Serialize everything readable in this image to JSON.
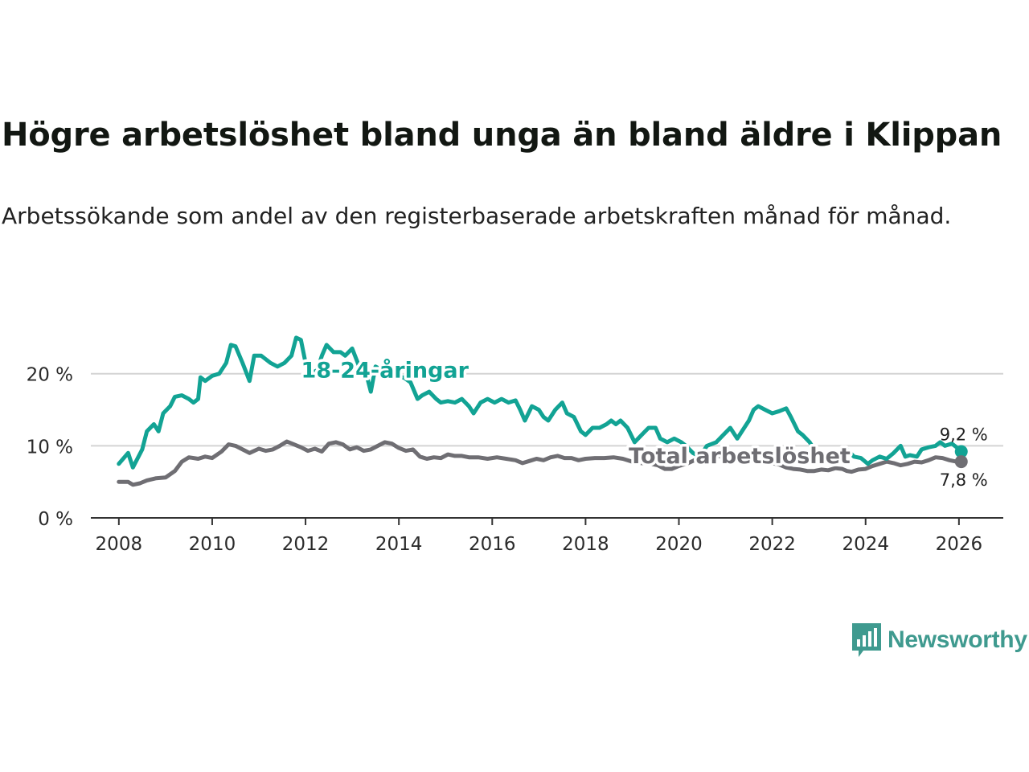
{
  "title": "Högre arbetslöshet bland unga än bland äldre i Klippan",
  "subtitle": "Arbetssökande som andel av den registerbaserade arbetskraften månad för månad.",
  "brand": {
    "name": "Newsworthy",
    "color": "#3f9a8f"
  },
  "colors": {
    "youth": "#12a394",
    "total": "#6f6e73",
    "grid": "#d4d4d4",
    "axis": "#333333"
  },
  "chart_data": {
    "type": "line",
    "title": "Högre arbetslöshet bland unga än bland äldre i Klippan",
    "xlabel": "",
    "ylabel": "",
    "xlim": [
      2007.4,
      2026.95
    ],
    "ylim": [
      0,
      27
    ],
    "y_ticks": [
      0,
      10,
      20
    ],
    "y_tick_labels": [
      "0 %",
      "10 %",
      "20 %"
    ],
    "x_ticks": [
      2008,
      2010,
      2012,
      2014,
      2016,
      2018,
      2020,
      2022,
      2024,
      2026
    ],
    "x_tick_labels": [
      "2008",
      "2010",
      "2012",
      "2014",
      "2016",
      "2018",
      "2020",
      "2022",
      "2024",
      "2026"
    ],
    "grid": true,
    "series": [
      {
        "name": "18-24-åringar",
        "color": "#12a394",
        "label_x": 2013.7,
        "label_y": 20.5,
        "end_label": "9,2 %",
        "end_value": 9.2,
        "points": [
          [
            2008.0,
            7.5
          ],
          [
            2008.2,
            9.0
          ],
          [
            2008.3,
            7.0
          ],
          [
            2008.5,
            9.5
          ],
          [
            2008.6,
            12.0
          ],
          [
            2008.75,
            13.0
          ],
          [
            2008.85,
            12.0
          ],
          [
            2008.95,
            14.5
          ],
          [
            2009.1,
            15.5
          ],
          [
            2009.2,
            16.8
          ],
          [
            2009.35,
            17.0
          ],
          [
            2009.5,
            16.5
          ],
          [
            2009.6,
            16.0
          ],
          [
            2009.7,
            16.5
          ],
          [
            2009.75,
            19.5
          ],
          [
            2009.85,
            19.0
          ],
          [
            2010.0,
            19.7
          ],
          [
            2010.15,
            20.0
          ],
          [
            2010.3,
            21.5
          ],
          [
            2010.4,
            24.0
          ],
          [
            2010.5,
            23.8
          ],
          [
            2010.65,
            21.5
          ],
          [
            2010.8,
            19.0
          ],
          [
            2010.9,
            22.5
          ],
          [
            2011.05,
            22.5
          ],
          [
            2011.25,
            21.5
          ],
          [
            2011.4,
            21.0
          ],
          [
            2011.55,
            21.5
          ],
          [
            2011.7,
            22.5
          ],
          [
            2011.8,
            25.0
          ],
          [
            2011.9,
            24.7
          ],
          [
            2012.0,
            21.5
          ],
          [
            2012.1,
            20.0
          ],
          [
            2012.25,
            20.5
          ],
          [
            2012.35,
            22.5
          ],
          [
            2012.45,
            24.0
          ],
          [
            2012.6,
            23.0
          ],
          [
            2012.75,
            23.0
          ],
          [
            2012.85,
            22.5
          ],
          [
            2013.0,
            23.5
          ],
          [
            2013.15,
            21.0
          ],
          [
            2013.3,
            20.0
          ],
          [
            2013.4,
            17.5
          ],
          [
            2013.5,
            21.0
          ],
          [
            2013.65,
            20.5
          ],
          [
            2013.8,
            19.8
          ],
          [
            2013.95,
            19.5
          ],
          [
            2014.1,
            19.5
          ],
          [
            2014.25,
            18.8
          ],
          [
            2014.4,
            16.5
          ],
          [
            2014.5,
            17.0
          ],
          [
            2014.65,
            17.5
          ],
          [
            2014.8,
            16.5
          ],
          [
            2014.9,
            16.0
          ],
          [
            2015.05,
            16.2
          ],
          [
            2015.2,
            16.0
          ],
          [
            2015.35,
            16.5
          ],
          [
            2015.5,
            15.5
          ],
          [
            2015.6,
            14.5
          ],
          [
            2015.75,
            16.0
          ],
          [
            2015.9,
            16.5
          ],
          [
            2016.05,
            16.0
          ],
          [
            2016.2,
            16.5
          ],
          [
            2016.35,
            16.0
          ],
          [
            2016.5,
            16.3
          ],
          [
            2016.6,
            15.0
          ],
          [
            2016.7,
            13.5
          ],
          [
            2016.85,
            15.5
          ],
          [
            2017.0,
            15.0
          ],
          [
            2017.1,
            14.0
          ],
          [
            2017.2,
            13.5
          ],
          [
            2017.35,
            15.0
          ],
          [
            2017.5,
            16.0
          ],
          [
            2017.6,
            14.5
          ],
          [
            2017.75,
            14.0
          ],
          [
            2017.9,
            12.0
          ],
          [
            2018.0,
            11.5
          ],
          [
            2018.15,
            12.5
          ],
          [
            2018.3,
            12.5
          ],
          [
            2018.45,
            13.0
          ],
          [
            2018.55,
            13.5
          ],
          [
            2018.65,
            13.0
          ],
          [
            2018.75,
            13.5
          ],
          [
            2018.9,
            12.5
          ],
          [
            2019.05,
            10.5
          ],
          [
            2019.2,
            11.5
          ],
          [
            2019.35,
            12.5
          ],
          [
            2019.5,
            12.5
          ],
          [
            2019.6,
            11.0
          ],
          [
            2019.75,
            10.5
          ],
          [
            2019.9,
            11.0
          ],
          [
            2020.05,
            10.5
          ],
          [
            2020.15,
            10.0
          ],
          [
            2020.3,
            9.0
          ],
          [
            2020.45,
            8.5
          ],
          [
            2020.6,
            10.0
          ],
          [
            2020.8,
            10.5
          ],
          [
            2020.95,
            11.5
          ],
          [
            2021.1,
            12.5
          ],
          [
            2021.25,
            11.0
          ],
          [
            2021.35,
            12.0
          ],
          [
            2021.5,
            13.5
          ],
          [
            2021.6,
            15.0
          ],
          [
            2021.7,
            15.5
          ],
          [
            2021.85,
            15.0
          ],
          [
            2022.0,
            14.5
          ],
          [
            2022.15,
            14.8
          ],
          [
            2022.3,
            15.2
          ],
          [
            2022.4,
            14.0
          ],
          [
            2022.55,
            12.0
          ],
          [
            2022.65,
            11.5
          ],
          [
            2022.8,
            10.5
          ],
          [
            2022.95,
            9.0
          ],
          [
            2023.1,
            8.0
          ],
          [
            2023.2,
            8.0
          ],
          [
            2023.3,
            7.5
          ],
          [
            2023.45,
            8.5
          ],
          [
            2023.6,
            9.5
          ],
          [
            2023.75,
            8.5
          ],
          [
            2023.9,
            8.3
          ],
          [
            2024.05,
            7.5
          ],
          [
            2024.15,
            8.0
          ],
          [
            2024.3,
            8.5
          ],
          [
            2024.45,
            8.2
          ],
          [
            2024.6,
            9.0
          ],
          [
            2024.75,
            10.0
          ],
          [
            2024.85,
            8.5
          ],
          [
            2024.95,
            8.7
          ],
          [
            2025.1,
            8.5
          ],
          [
            2025.2,
            9.5
          ],
          [
            2025.35,
            9.8
          ],
          [
            2025.5,
            10.0
          ],
          [
            2025.6,
            10.5
          ],
          [
            2025.7,
            10.0
          ],
          [
            2025.85,
            10.3
          ],
          [
            2025.95,
            9.8
          ],
          [
            2026.05,
            9.2
          ]
        ]
      },
      {
        "name": "Total arbetslöshet",
        "color": "#6f6e73",
        "label_x": 2021.3,
        "label_y": 8.6,
        "end_label": "7,8 %",
        "end_value": 7.8,
        "points": [
          [
            2008.0,
            5.0
          ],
          [
            2008.2,
            5.0
          ],
          [
            2008.3,
            4.6
          ],
          [
            2008.45,
            4.8
          ],
          [
            2008.6,
            5.2
          ],
          [
            2008.8,
            5.5
          ],
          [
            2009.0,
            5.6
          ],
          [
            2009.2,
            6.5
          ],
          [
            2009.35,
            7.8
          ],
          [
            2009.5,
            8.4
          ],
          [
            2009.7,
            8.2
          ],
          [
            2009.85,
            8.5
          ],
          [
            2010.0,
            8.3
          ],
          [
            2010.2,
            9.2
          ],
          [
            2010.35,
            10.2
          ],
          [
            2010.5,
            10.0
          ],
          [
            2010.65,
            9.5
          ],
          [
            2010.8,
            9.0
          ],
          [
            2011.0,
            9.6
          ],
          [
            2011.15,
            9.3
          ],
          [
            2011.3,
            9.5
          ],
          [
            2011.45,
            10.0
          ],
          [
            2011.6,
            10.6
          ],
          [
            2011.75,
            10.2
          ],
          [
            2011.9,
            9.8
          ],
          [
            2012.05,
            9.3
          ],
          [
            2012.2,
            9.6
          ],
          [
            2012.35,
            9.2
          ],
          [
            2012.5,
            10.3
          ],
          [
            2012.65,
            10.5
          ],
          [
            2012.8,
            10.2
          ],
          [
            2012.95,
            9.5
          ],
          [
            2013.1,
            9.8
          ],
          [
            2013.25,
            9.3
          ],
          [
            2013.4,
            9.5
          ],
          [
            2013.55,
            10.0
          ],
          [
            2013.7,
            10.5
          ],
          [
            2013.85,
            10.3
          ],
          [
            2014.0,
            9.7
          ],
          [
            2014.15,
            9.3
          ],
          [
            2014.3,
            9.5
          ],
          [
            2014.45,
            8.5
          ],
          [
            2014.6,
            8.2
          ],
          [
            2014.75,
            8.4
          ],
          [
            2014.9,
            8.3
          ],
          [
            2015.05,
            8.8
          ],
          [
            2015.2,
            8.6
          ],
          [
            2015.35,
            8.6
          ],
          [
            2015.5,
            8.4
          ],
          [
            2015.7,
            8.4
          ],
          [
            2015.9,
            8.2
          ],
          [
            2016.1,
            8.4
          ],
          [
            2016.3,
            8.2
          ],
          [
            2016.5,
            8.0
          ],
          [
            2016.65,
            7.6
          ],
          [
            2016.8,
            7.9
          ],
          [
            2016.95,
            8.2
          ],
          [
            2017.1,
            8.0
          ],
          [
            2017.25,
            8.4
          ],
          [
            2017.4,
            8.6
          ],
          [
            2017.55,
            8.3
          ],
          [
            2017.7,
            8.3
          ],
          [
            2017.85,
            8.0
          ],
          [
            2018.0,
            8.2
          ],
          [
            2018.2,
            8.3
          ],
          [
            2018.4,
            8.3
          ],
          [
            2018.6,
            8.4
          ],
          [
            2018.8,
            8.2
          ],
          [
            2019.0,
            7.8
          ],
          [
            2019.2,
            7.6
          ],
          [
            2019.4,
            7.5
          ],
          [
            2019.55,
            7.3
          ],
          [
            2019.7,
            6.8
          ],
          [
            2019.85,
            6.8
          ],
          [
            2020.0,
            7.2
          ],
          [
            2020.2,
            7.6
          ],
          [
            2020.4,
            8.2
          ],
          [
            2020.6,
            8.8
          ],
          [
            2020.8,
            8.6
          ],
          [
            2021.0,
            8.5
          ],
          [
            2021.2,
            8.8
          ],
          [
            2021.4,
            8.4
          ],
          [
            2021.6,
            8.2
          ],
          [
            2021.8,
            8.0
          ],
          [
            2022.0,
            7.6
          ],
          [
            2022.15,
            7.4
          ],
          [
            2022.3,
            7.0
          ],
          [
            2022.45,
            6.8
          ],
          [
            2022.6,
            6.7
          ],
          [
            2022.75,
            6.5
          ],
          [
            2022.9,
            6.5
          ],
          [
            2023.05,
            6.7
          ],
          [
            2023.2,
            6.6
          ],
          [
            2023.35,
            6.9
          ],
          [
            2023.5,
            6.8
          ],
          [
            2023.6,
            6.5
          ],
          [
            2023.7,
            6.4
          ],
          [
            2023.85,
            6.7
          ],
          [
            2024.0,
            6.8
          ],
          [
            2024.15,
            7.2
          ],
          [
            2024.3,
            7.5
          ],
          [
            2024.45,
            7.8
          ],
          [
            2024.6,
            7.6
          ],
          [
            2024.75,
            7.3
          ],
          [
            2024.9,
            7.5
          ],
          [
            2025.05,
            7.8
          ],
          [
            2025.2,
            7.7
          ],
          [
            2025.35,
            8.0
          ],
          [
            2025.5,
            8.4
          ],
          [
            2025.65,
            8.3
          ],
          [
            2025.8,
            8.0
          ],
          [
            2025.95,
            7.8
          ],
          [
            2026.05,
            7.8
          ]
        ]
      }
    ]
  }
}
